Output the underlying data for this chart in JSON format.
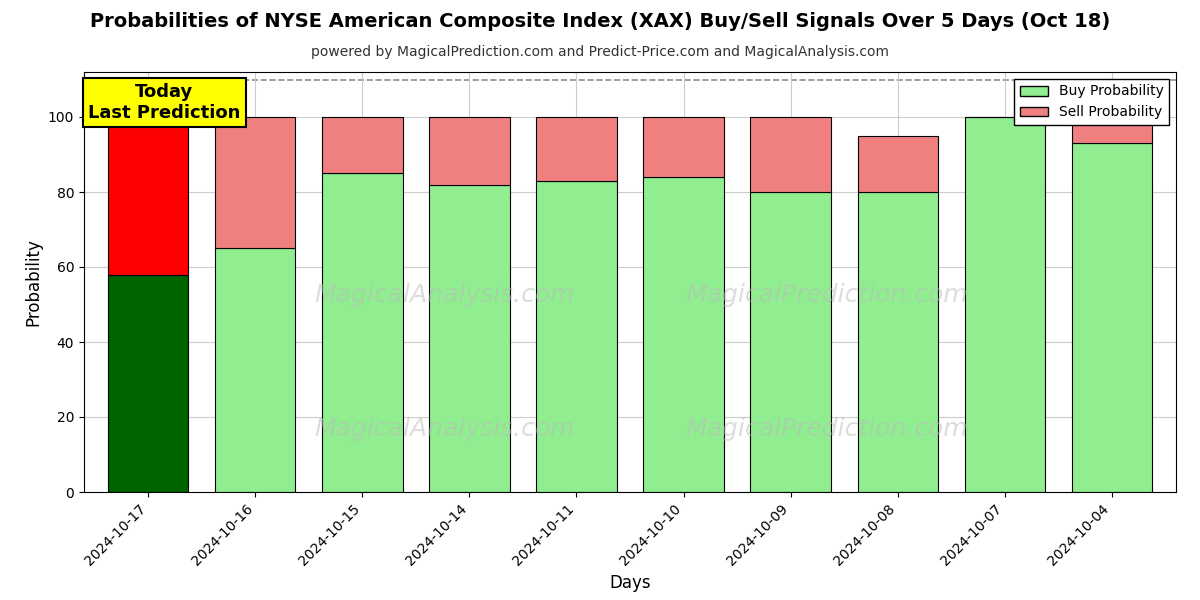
{
  "title": "Probabilities of NYSE American Composite Index (XAX) Buy/Sell Signals Over 5 Days (Oct 18)",
  "subtitle": "powered by MagicalPrediction.com and Predict-Price.com and MagicalAnalysis.com",
  "xlabel": "Days",
  "ylabel": "Probability",
  "dates": [
    "2024-10-17",
    "2024-10-16",
    "2024-10-15",
    "2024-10-14",
    "2024-10-11",
    "2024-10-10",
    "2024-10-09",
    "2024-10-08",
    "2024-10-07",
    "2024-10-04"
  ],
  "buy_values": [
    58,
    65,
    85,
    82,
    83,
    84,
    80,
    80,
    100,
    93
  ],
  "sell_values": [
    42,
    35,
    15,
    18,
    17,
    16,
    20,
    15,
    0,
    7
  ],
  "buy_color_today": "#006400",
  "sell_color_today": "#FF0000",
  "buy_color_normal": "#90EE90",
  "sell_color_normal": "#F08080",
  "bar_edge_color": "black",
  "bar_edge_width": 0.8,
  "ylim": [
    0,
    112
  ],
  "yticks": [
    0,
    20,
    40,
    60,
    80,
    100
  ],
  "dashed_line_y": 110,
  "legend_buy_label": "Buy Probability",
  "legend_sell_label": "Sell Probability",
  "annotation_text": "Today\nLast Prediction",
  "watermark_color": "#bbbbbb",
  "background_color": "#ffffff",
  "grid_color": "#cccccc"
}
